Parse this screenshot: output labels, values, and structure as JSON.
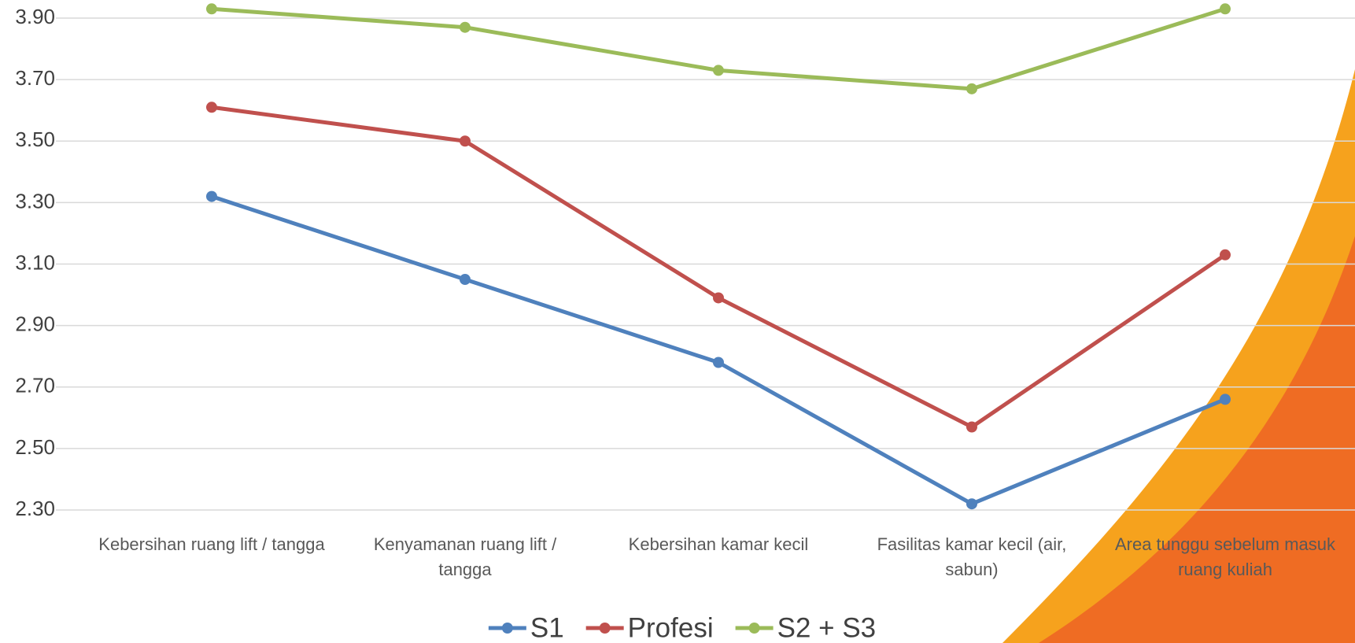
{
  "chart_data": {
    "type": "line",
    "categories": [
      "Kebersihan ruang lift / tangga",
      "Kenyamanan ruang lift / tangga",
      "Kebersihan kamar kecil",
      "Fasilitas kamar kecil (air, sabun)",
      "Area tunggu sebelum masuk ruang kuliah"
    ],
    "series": [
      {
        "name": "S1",
        "color": "#4f81bd",
        "values": [
          3.32,
          3.05,
          2.78,
          2.32,
          2.66
        ]
      },
      {
        "name": "Profesi",
        "color": "#c0504d",
        "values": [
          3.61,
          3.5,
          2.99,
          2.57,
          3.13
        ]
      },
      {
        "name": "S2 + S3",
        "color": "#9bbb59",
        "values": [
          3.93,
          3.87,
          3.73,
          3.67,
          3.93
        ]
      }
    ],
    "ylim": [
      2.3,
      3.9
    ],
    "yticks": [
      {
        "value": 2.3,
        "label": "2.30"
      },
      {
        "value": 2.5,
        "label": "2.50"
      },
      {
        "value": 2.7,
        "label": "2.70"
      },
      {
        "value": 2.9,
        "label": "2.90"
      },
      {
        "value": 3.1,
        "label": "3.10"
      },
      {
        "value": 3.3,
        "label": "3.30"
      },
      {
        "value": 3.5,
        "label": "3.50"
      },
      {
        "value": 3.7,
        "label": "3.70"
      },
      {
        "value": 3.9,
        "label": "3.90"
      }
    ],
    "grid": true,
    "legend": "bottom"
  }
}
